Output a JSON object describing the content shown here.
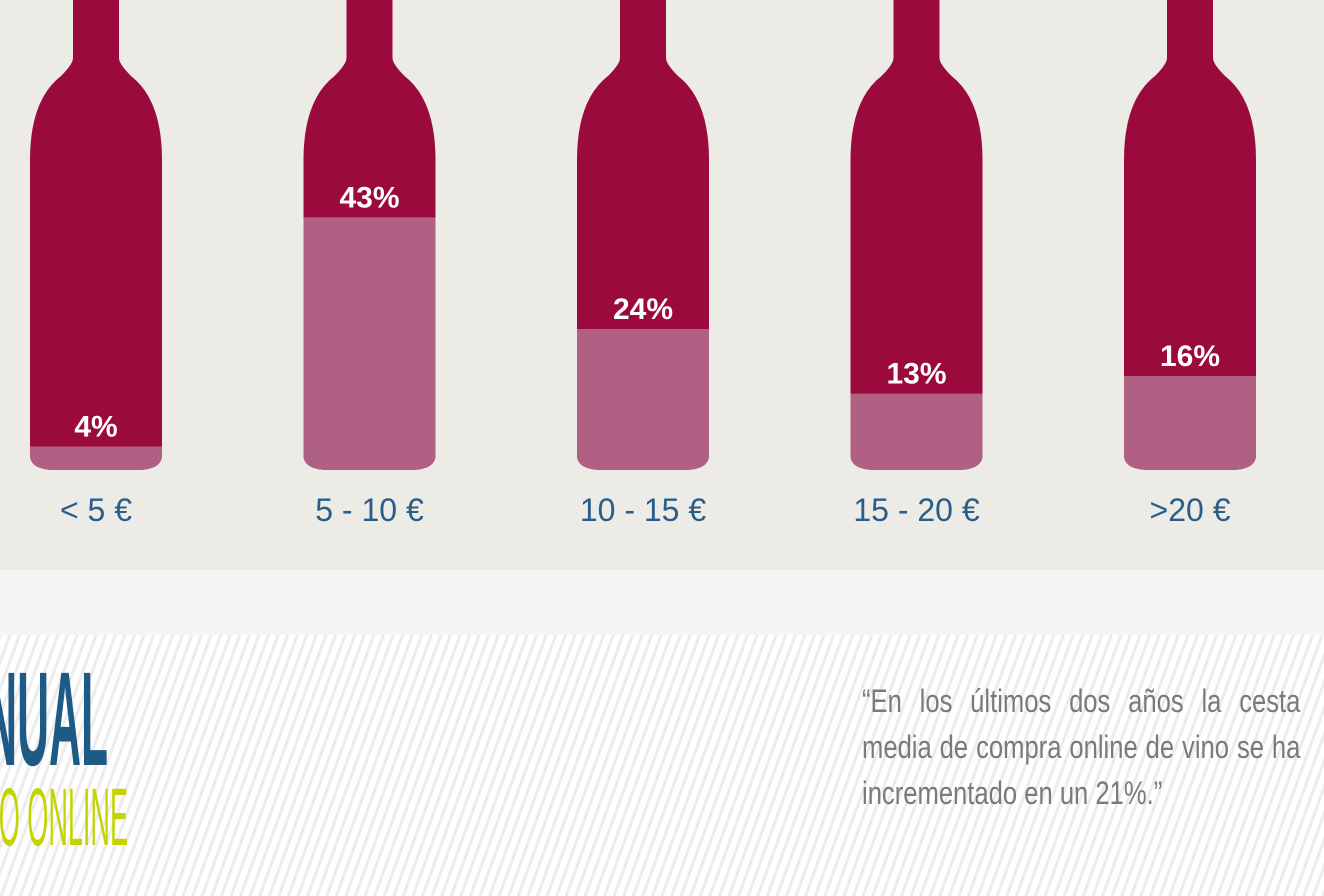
{
  "chart_data": {
    "type": "bottle",
    "categories": [
      "< 5 €",
      "5 - 10 €",
      "10 - 15 €",
      "15 - 20 €",
      ">20 €"
    ],
    "values": [
      4,
      43,
      24,
      13,
      16
    ],
    "value_labels": [
      "4%",
      "43%",
      "24%",
      "13%",
      "16%"
    ],
    "ylim": [
      0,
      80
    ],
    "color": "#9b0a3c",
    "fill_color": "#b06083"
  },
  "banner": {
    "title": "NUAL",
    "subtitle": "O ONLINE"
  },
  "quote": "“En los últimos dos años la cesta media de compra online de vino se ha incrementado en un 21%.”"
}
